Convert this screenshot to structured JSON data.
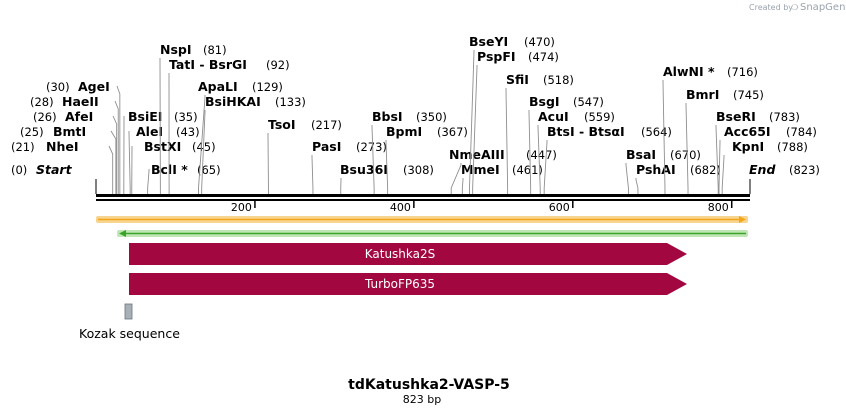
{
  "credit": {
    "prefix": "Created by",
    "brand": "SnapGene"
  },
  "map": {
    "title": "tdKatushka2-VASP-5",
    "subtitle": "823 bp",
    "length": 823,
    "ticks": [
      {
        "pos": 200,
        "label": "200"
      },
      {
        "pos": 400,
        "label": "400"
      },
      {
        "pos": 600,
        "label": "600"
      },
      {
        "pos": 800,
        "label": "800"
      }
    ],
    "start": {
      "name": "Start",
      "pos_label": "(0)"
    },
    "end": {
      "name": "End",
      "pos_label": "(823)"
    }
  },
  "sites": [
    {
      "name": "NheI",
      "pos_label": "(21)",
      "pos": 21
    },
    {
      "name": "BmtI",
      "pos_label": "(25)",
      "pos": 25
    },
    {
      "name": "AfeI",
      "pos_label": "(26)",
      "pos": 26
    },
    {
      "name": "HaeII",
      "pos_label": "(28)",
      "pos": 28
    },
    {
      "name": "AgeI",
      "pos_label": "(30)",
      "pos": 30
    },
    {
      "name": "BsiEI",
      "pos_label": "(35)",
      "pos": 35
    },
    {
      "name": "AleI",
      "pos_label": "(43)",
      "pos": 43
    },
    {
      "name": "BstXI",
      "pos_label": "(45)",
      "pos": 45
    },
    {
      "name": "BclI *",
      "pos_label": "(65)",
      "pos": 65
    },
    {
      "name": "NspI",
      "pos_label": "(81)",
      "pos": 81
    },
    {
      "name": "TatI - BsrGI",
      "pos_label": "(92)",
      "pos": 92
    },
    {
      "name": "ApaLI",
      "pos_label": "(129)",
      "pos": 129
    },
    {
      "name": "BsiHKAI",
      "pos_label": "(133)",
      "pos": 133
    },
    {
      "name": "TsoI",
      "pos_label": "(217)",
      "pos": 217
    },
    {
      "name": "PasI",
      "pos_label": "(273)",
      "pos": 273
    },
    {
      "name": "Bsu36I",
      "pos_label": "(308)",
      "pos": 308
    },
    {
      "name": "BbsI",
      "pos_label": "(350)",
      "pos": 350
    },
    {
      "name": "BpmI",
      "pos_label": "(367)",
      "pos": 367
    },
    {
      "name": "NmeAIII",
      "pos_label": "(447)",
      "pos": 447
    },
    {
      "name": "MmeI",
      "pos_label": "(461)",
      "pos": 461
    },
    {
      "name": "BseYI",
      "pos_label": "(470)",
      "pos": 470
    },
    {
      "name": "PspFI",
      "pos_label": "(474)",
      "pos": 474
    },
    {
      "name": "SfiI",
      "pos_label": "(518)",
      "pos": 518
    },
    {
      "name": "BsgI",
      "pos_label": "(547)",
      "pos": 547
    },
    {
      "name": "AcuI",
      "pos_label": "(559)",
      "pos": 559
    },
    {
      "name": "BtsI - BtsαI",
      "pos_label": "(564)",
      "pos": 564
    },
    {
      "name": "BsaI",
      "pos_label": "(670)",
      "pos": 670
    },
    {
      "name": "PshAI",
      "pos_label": "(682)",
      "pos": 682
    },
    {
      "name": "AlwNI *",
      "pos_label": "(716)",
      "pos": 716
    },
    {
      "name": "BmrI",
      "pos_label": "(745)",
      "pos": 745
    },
    {
      "name": "BseRI",
      "pos_label": "(783)",
      "pos": 783
    },
    {
      "name": "Acc65I",
      "pos_label": "(784)",
      "pos": 784
    },
    {
      "name": "KpnI",
      "pos_label": "(788)",
      "pos": 788
    }
  ],
  "features": [
    {
      "name": "Katushka2S",
      "color": "#a3073f",
      "start": 42,
      "end": 749
    },
    {
      "name": "TurboFP635",
      "color": "#a3073f",
      "start": 42,
      "end": 749
    }
  ],
  "tracks": {
    "orf_forward_color": "#f3a61b",
    "orf_reverse_color": "#3aa32a"
  },
  "kozak": {
    "name": "Kozak sequence",
    "color": "#a8b0b8"
  }
}
